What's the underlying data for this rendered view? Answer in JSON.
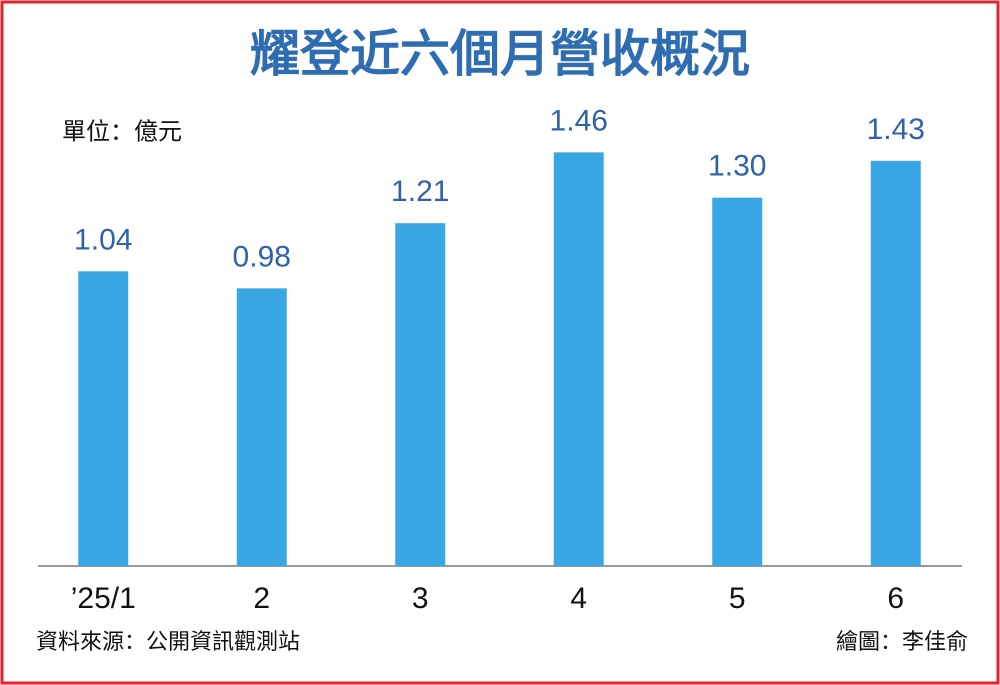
{
  "chart_data": {
    "type": "bar",
    "title": "耀登近六個月營收概況",
    "unit": "單位：億元",
    "categories": [
      "’25/1",
      "2",
      "3",
      "4",
      "5",
      "6"
    ],
    "values": [
      1.04,
      0.98,
      1.21,
      1.46,
      1.3,
      1.43
    ],
    "value_labels": [
      "1.04",
      "0.98",
      "1.21",
      "1.46",
      "1.30",
      "1.43"
    ],
    "color": "#3aa7e5",
    "ylim": [
      0,
      1.5
    ],
    "source": "資料來源：公開資訊觀測站",
    "credit": "繪圖：李佳俞"
  }
}
